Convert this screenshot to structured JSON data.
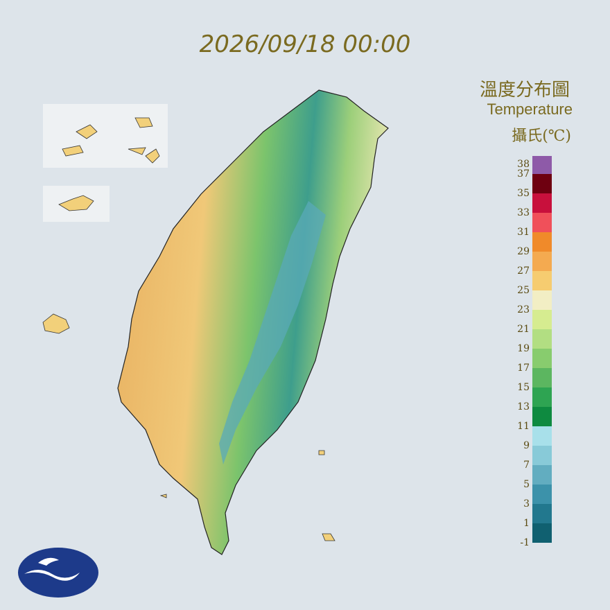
{
  "header": {
    "timestamp": "2026/09/18 00:00"
  },
  "legend": {
    "title": "溫度分布圖",
    "subtitle": "Temperature",
    "unit": "攝氏(℃)",
    "ticks": [
      38,
      37,
      35,
      33,
      31,
      29,
      27,
      25,
      23,
      21,
      19,
      17,
      15,
      13,
      11,
      9,
      7,
      5,
      3,
      1,
      -1
    ],
    "colors": [
      "#8e5aa8",
      "#6e0010",
      "#c8103c",
      "#f0505a",
      "#f08a2a",
      "#f4aa50",
      "#f6cc70",
      "#f2eec4",
      "#d6ec90",
      "#b2de82",
      "#88cc6e",
      "#5cb660",
      "#2ea452",
      "#0e8a40",
      "#a8e0ea",
      "#88cad8",
      "#62adc0",
      "#3c92aa",
      "#22788e",
      "#106070"
    ]
  }
}
